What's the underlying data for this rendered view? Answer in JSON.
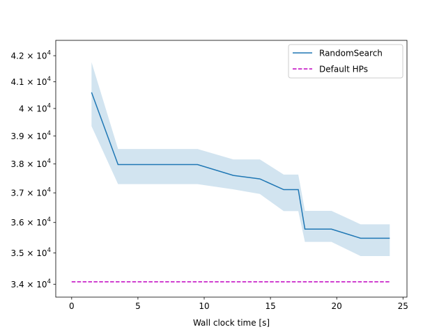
{
  "chart_data": {
    "type": "line",
    "xlabel": "Wall clock time [s]",
    "ylabel": "",
    "y_scale": "log",
    "xlim": [
      -1.2,
      25.3
    ],
    "ylim": [
      33600,
      42600
    ],
    "x_ticks": [
      0,
      5,
      10,
      15,
      20,
      25
    ],
    "x_tick_labels": [
      "0",
      "5",
      "10",
      "15",
      "20",
      "25"
    ],
    "y_ticks": [
      34000,
      35000,
      36000,
      37000,
      38000,
      39000,
      40000,
      41000,
      42000
    ],
    "y_tick_labels": [
      {
        "mantissa": "3.4",
        "base": "10",
        "exp": "4"
      },
      {
        "mantissa": "3.5",
        "base": "10",
        "exp": "4"
      },
      {
        "mantissa": "3.6",
        "base": "10",
        "exp": "4"
      },
      {
        "mantissa": "3.7",
        "base": "10",
        "exp": "4"
      },
      {
        "mantissa": "3.8",
        "base": "10",
        "exp": "4"
      },
      {
        "mantissa": "3.9",
        "base": "10",
        "exp": "4"
      },
      {
        "mantissa": "",
        "base": "4 × 10",
        "exp": "4"
      },
      {
        "mantissa": "4.1",
        "base": "10",
        "exp": "4"
      },
      {
        "mantissa": "4.2",
        "base": "10",
        "exp": "4"
      }
    ],
    "grid": false,
    "legend_position": "top-right",
    "series": [
      {
        "name": "RandomSearch",
        "color": "#1f77b4",
        "style": "solid",
        "x": [
          1.5,
          3.5,
          9.5,
          12.2,
          14.2,
          16.0,
          17.1,
          17.6,
          19.6,
          21.8,
          24.0
        ],
        "y": [
          40600,
          37980,
          37980,
          37600,
          37480,
          37110,
          37110,
          35780,
          35780,
          35480,
          35480
        ],
        "lower": [
          39350,
          37300,
          37300,
          37120,
          36960,
          36380,
          36380,
          35360,
          35360,
          34900,
          34900
        ],
        "upper": [
          41750,
          38530,
          38530,
          38160,
          38160,
          37630,
          37630,
          36390,
          36390,
          35940,
          35940
        ],
        "band_color": "#1f77b4",
        "band_opacity": 0.2
      },
      {
        "name": "Default HPs",
        "color": "#bf00bf",
        "style": "dashed",
        "x": [
          0,
          24.0
        ],
        "y": [
          34080,
          34080
        ]
      }
    ]
  }
}
